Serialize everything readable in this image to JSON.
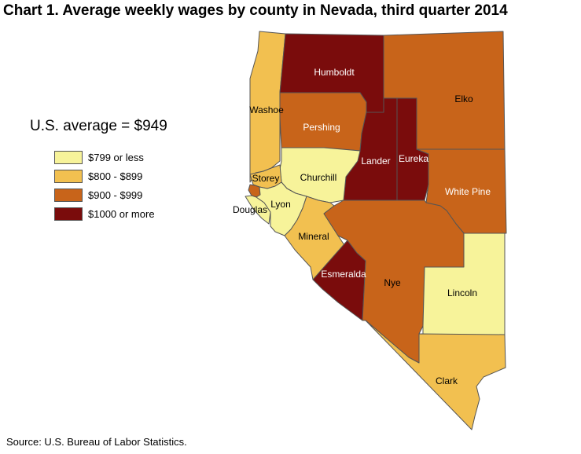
{
  "title": "Chart 1. Average weekly wages by county in Nevada, third quarter 2014",
  "us_average": "U.S. average = $949",
  "legend": [
    {
      "label": "$799 or less",
      "color": "#f7f39a"
    },
    {
      "label": "$800 - $899",
      "color": "#f2c050"
    },
    {
      "label": "$900 - $999",
      "color": "#c8641a"
    },
    {
      "label": "$1000 or more",
      "color": "#7a0c0c"
    }
  ],
  "counties": {
    "humboldt": {
      "name": "Humboldt",
      "bracket": "$1000 or more"
    },
    "elko": {
      "name": "Elko",
      "bracket": "$900 - $999"
    },
    "washoe": {
      "name": "Washoe",
      "bracket": "$800 - $899"
    },
    "pershing": {
      "name": "Pershing",
      "bracket": "$900 - $999"
    },
    "lander": {
      "name": "Lander",
      "bracket": "$1000 or more"
    },
    "eureka": {
      "name": "Eureka",
      "bracket": "$1000 or more"
    },
    "churchill": {
      "name": "Churchill",
      "bracket": "$799 or less"
    },
    "white_pine": {
      "name": "White Pine",
      "bracket": "$900 - $999"
    },
    "storey": {
      "name": "Storey",
      "bracket": "$800 - $899"
    },
    "douglas": {
      "name": "Douglas",
      "bracket": "$799 or less"
    },
    "lyon": {
      "name": "Lyon",
      "bracket": "$799 or less"
    },
    "carson_city": {
      "name": "",
      "bracket": "$900 - $999"
    },
    "mineral": {
      "name": "Mineral",
      "bracket": "$800 - $899"
    },
    "esmeralda": {
      "name": "Esmeralda",
      "bracket": "$1000 or more"
    },
    "nye": {
      "name": "Nye",
      "bracket": "$900 - $999"
    },
    "lincoln": {
      "name": "Lincoln",
      "bracket": "$799 or less"
    },
    "clark": {
      "name": "Clark",
      "bracket": "$800 - $899"
    }
  },
  "source": "Source: U.S. Bureau of Labor Statistics."
}
